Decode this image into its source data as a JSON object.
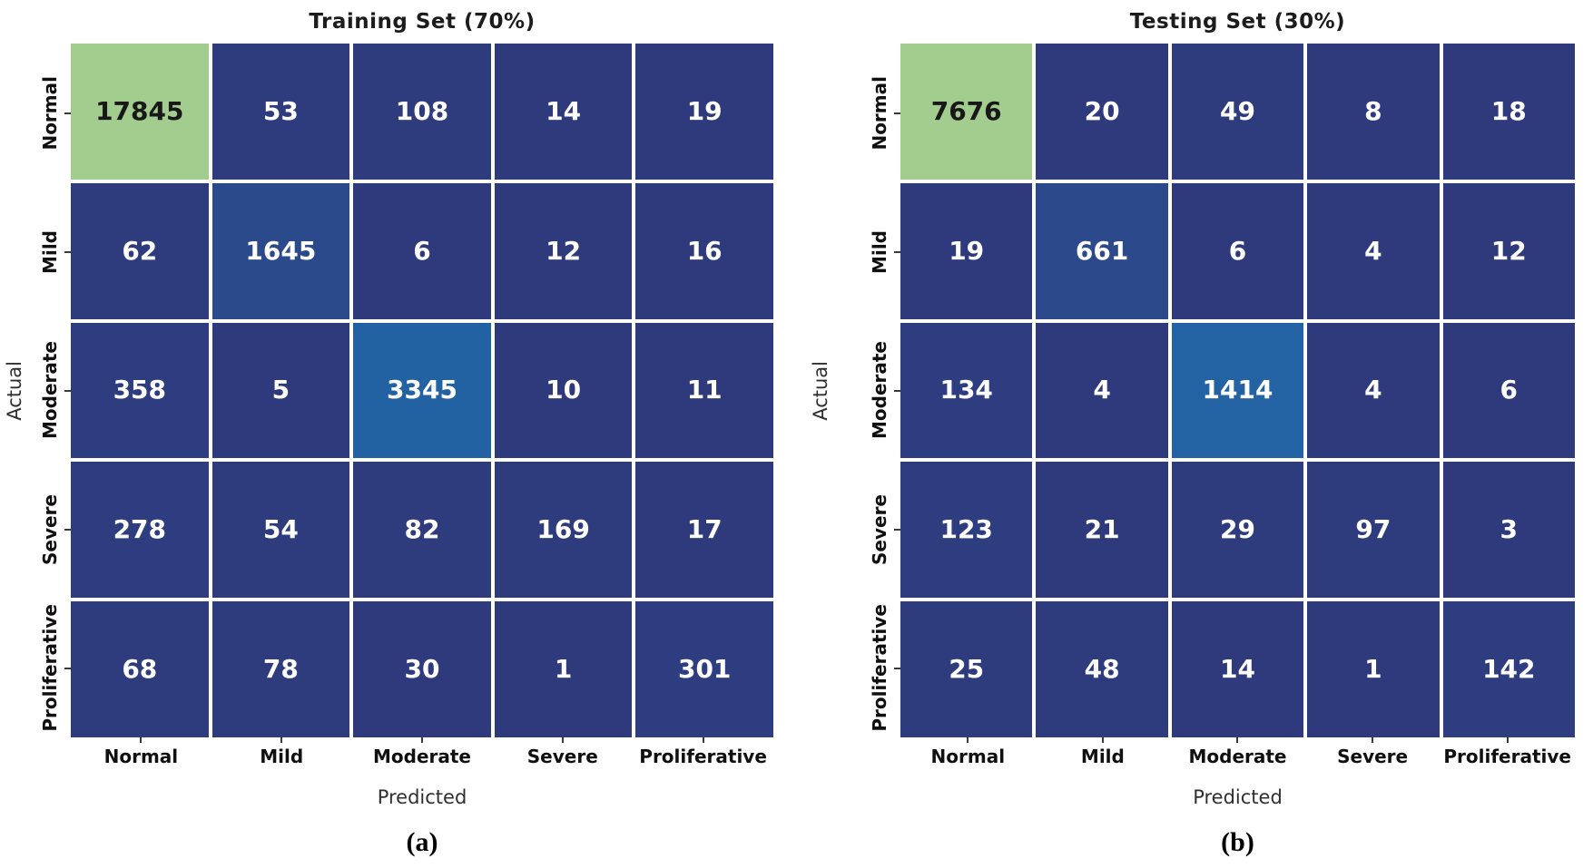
{
  "chart_data": [
    {
      "type": "heatmap",
      "title": "Training Set (70%)",
      "caption": "(a)",
      "xlabel": "Predicted",
      "ylabel": "Actual",
      "x_tick_labels": [
        "Normal",
        "Mild",
        "Moderate",
        "Severe",
        "Proliferative"
      ],
      "y_tick_labels": [
        "Normal",
        "Mild",
        "Moderate",
        "Severe",
        "Proliferative"
      ],
      "rows": [
        [
          17845,
          53,
          108,
          14,
          19
        ],
        [
          62,
          1645,
          6,
          12,
          16
        ],
        [
          358,
          5,
          3345,
          10,
          11
        ],
        [
          278,
          54,
          82,
          169,
          17
        ],
        [
          68,
          78,
          30,
          1,
          301
        ]
      ],
      "grid": true,
      "legend": "none"
    },
    {
      "type": "heatmap",
      "title": "Testing Set (30%)",
      "caption": "(b)",
      "xlabel": "Predicted",
      "ylabel": "Actual",
      "x_tick_labels": [
        "Normal",
        "Mild",
        "Moderate",
        "Severe",
        "Proliferative"
      ],
      "y_tick_labels": [
        "Normal",
        "Mild",
        "Moderate",
        "Severe",
        "Proliferative"
      ],
      "rows": [
        [
          7676,
          20,
          49,
          8,
          18
        ],
        [
          19,
          661,
          6,
          4,
          12
        ],
        [
          134,
          4,
          1414,
          4,
          6
        ],
        [
          123,
          21,
          29,
          97,
          3
        ],
        [
          25,
          48,
          14,
          1,
          142
        ]
      ],
      "grid": true,
      "legend": "none"
    }
  ],
  "palette": {
    "cmap_stops": [
      [
        0,
        "#2e3a7c"
      ],
      [
        0.092,
        "#2b4a8c"
      ],
      [
        0.19,
        "#2263a4"
      ],
      [
        1,
        "#a2cd8e"
      ]
    ],
    "cell_gridline": "#ffffff",
    "annot_light": "#ffffff",
    "annot_dark": "#181818",
    "tick_label_color": "#101010",
    "axis_label_color": "#2f2f2f",
    "title_color": "#1c1c1c",
    "caption_color": "#000000"
  }
}
